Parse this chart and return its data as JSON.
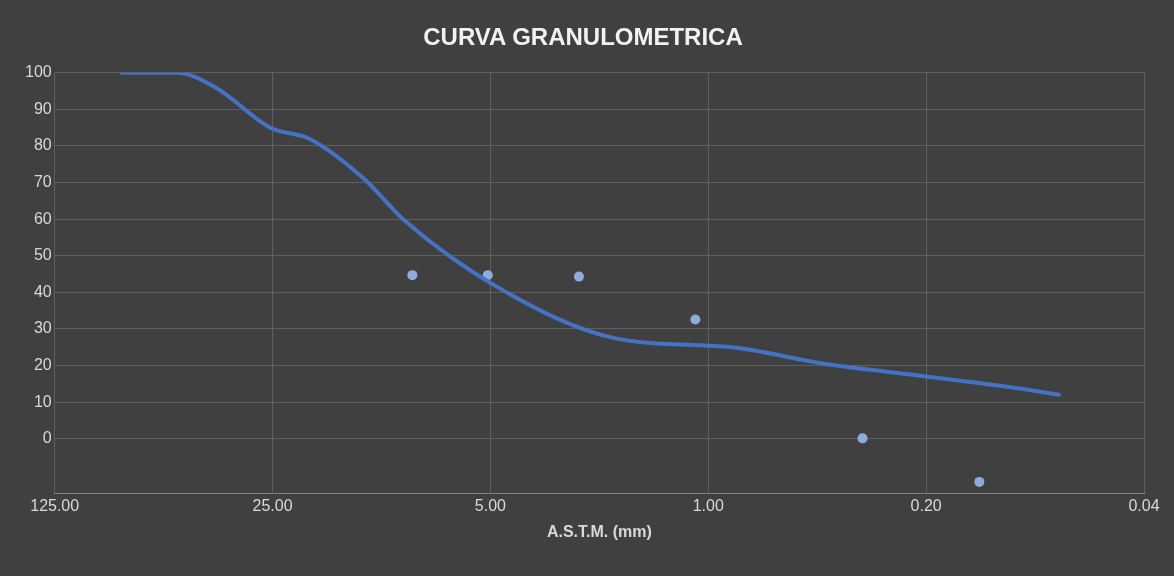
{
  "chart_data": {
    "type": "line",
    "title": "CURVA GRANULOMETRICA",
    "xlabel": "A.S.T.M. (mm)",
    "log": "x",
    "xlim": [
      125,
      0.04
    ],
    "xticks": [
      {
        "value": 125,
        "label": "125.00"
      },
      {
        "value": 25,
        "label": "25.00"
      },
      {
        "value": 5,
        "label": "5.00"
      },
      {
        "value": 1,
        "label": "1.00"
      },
      {
        "value": 0.2,
        "label": "0.20"
      },
      {
        "value": 0.04,
        "label": "0.04"
      }
    ],
    "ylim": [
      -15,
      100
    ],
    "yticks": [
      0,
      10,
      20,
      30,
      40,
      50,
      60,
      70,
      80,
      90,
      100
    ],
    "grid": true,
    "series": [
      {
        "color": "#4472c4",
        "marker": "none",
        "x": [
          76.2,
          50.8,
          38.1,
          25.4,
          19.05,
          12.7,
          9.53,
          4.76,
          2.0,
          0.84,
          0.425,
          0.25,
          0.106,
          0.075
        ],
        "values": [
          100,
          100,
          96,
          85,
          82,
          71,
          60,
          41.5,
          27.5,
          25,
          20.5,
          18,
          14,
          12
        ]
      },
      {
        "type": "scatter",
        "color": "#8faadc",
        "marker": "circle",
        "x": [
          8.9,
          5.1,
          2.6,
          1.1,
          0.32,
          0.135
        ],
        "values": [
          44.7,
          44.7,
          44.3,
          32.6,
          0.1,
          -11.8
        ]
      }
    ]
  }
}
